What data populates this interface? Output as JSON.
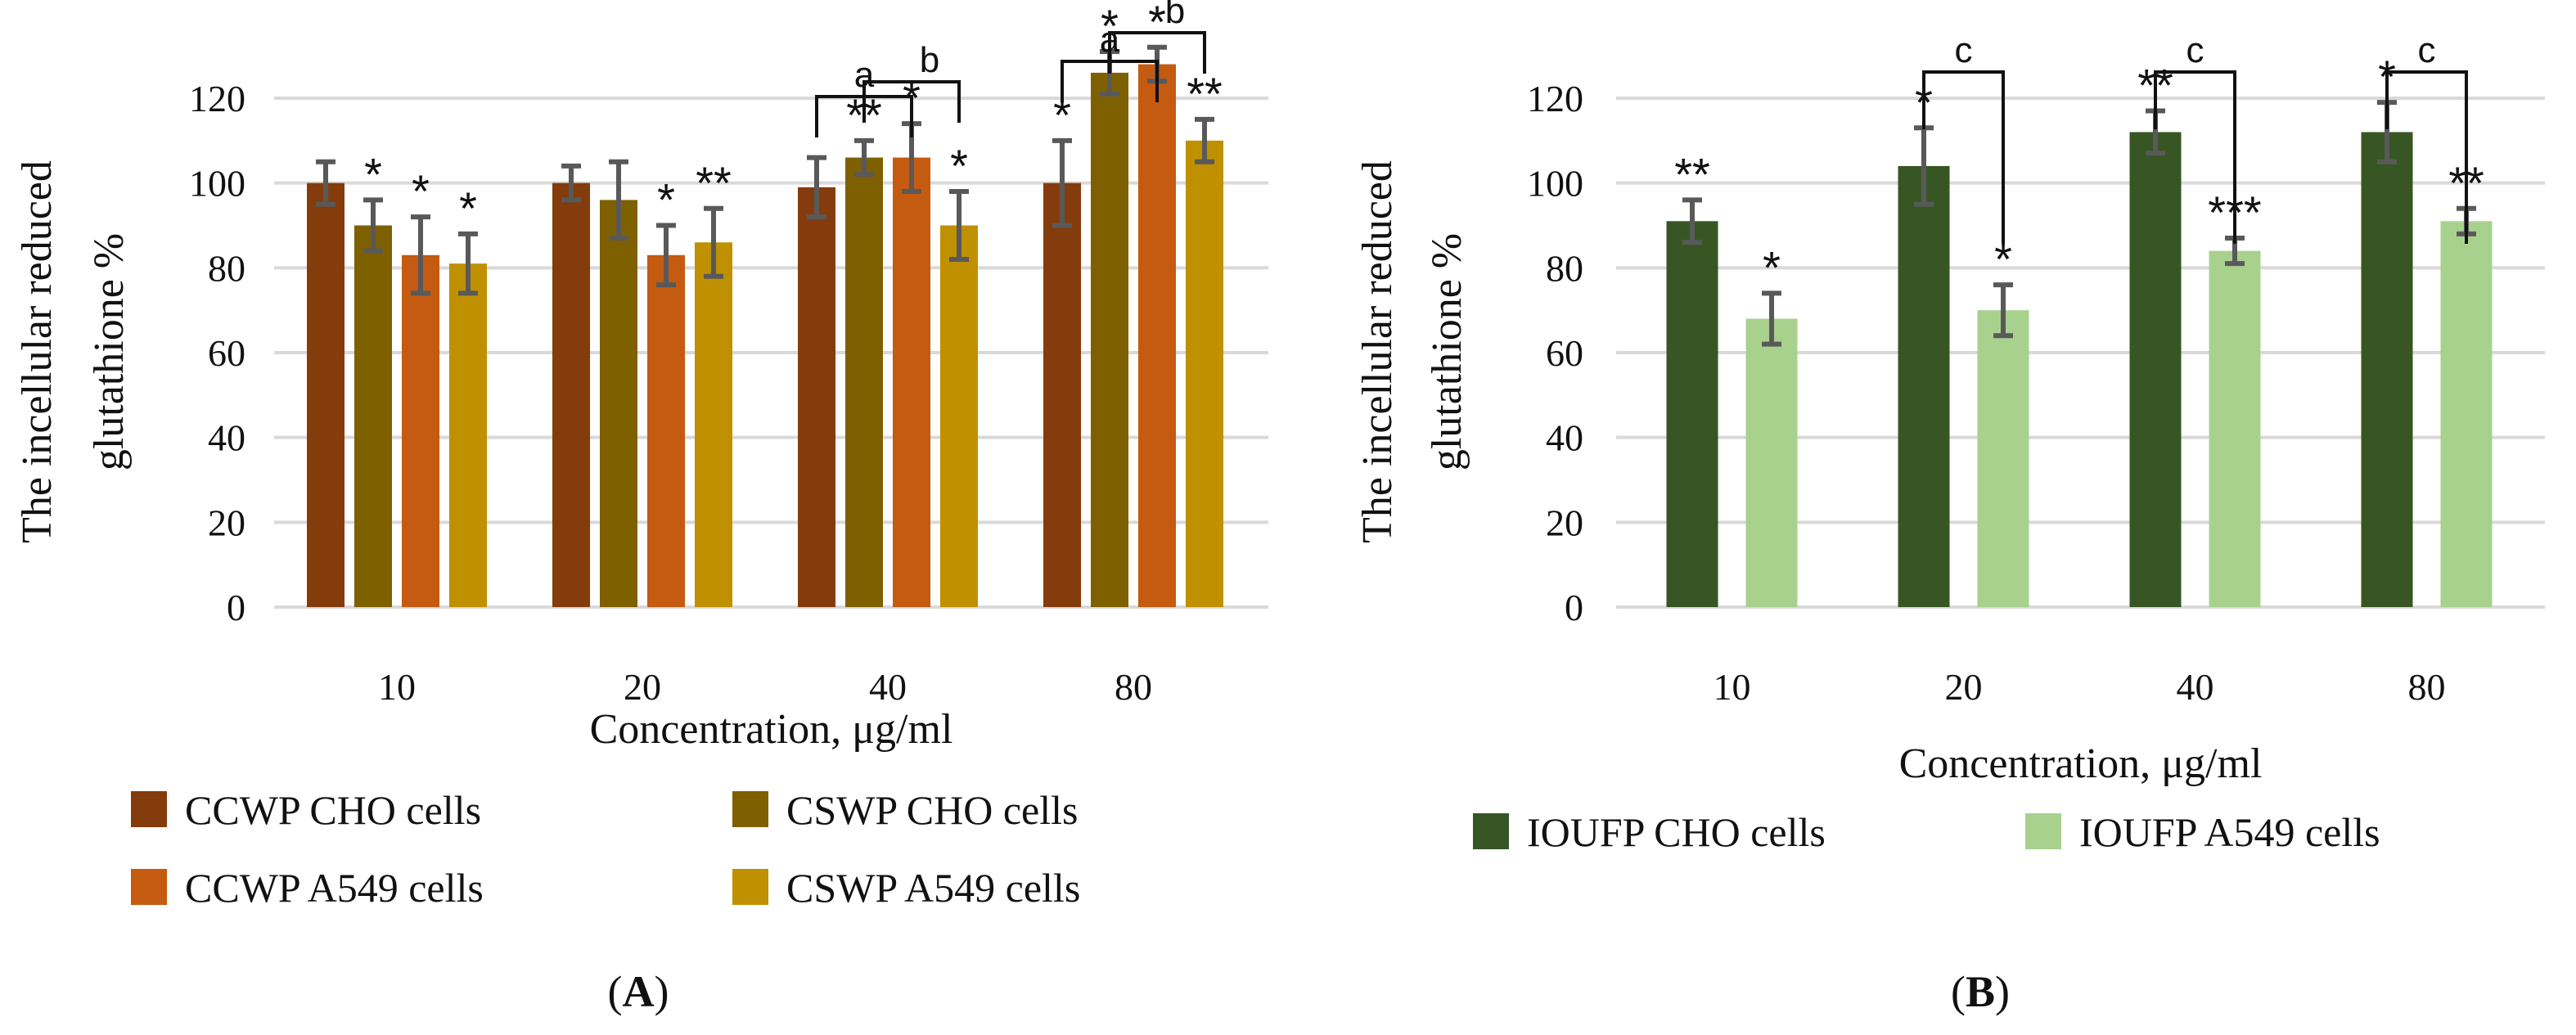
{
  "chart_data": [
    {
      "type": "bar",
      "panel": "A",
      "ylabel_lines": [
        "The incellular reduced",
        "glutathione %"
      ],
      "xlabel": "Concentration, μg/ml",
      "ylim": [
        0,
        120
      ],
      "yticks": [
        0,
        20,
        40,
        60,
        80,
        100,
        120
      ],
      "categories": [
        "10",
        "20",
        "40",
        "80"
      ],
      "series": [
        {
          "name": "CCWP  CHO cells",
          "color": "#843C0C",
          "values": [
            100,
            100,
            99,
            100
          ],
          "errors": [
            5,
            4,
            7,
            10
          ],
          "stars": [
            "",
            "",
            "",
            "*"
          ]
        },
        {
          "name": "CSWP CHO cells",
          "color": "#7F6000",
          "values": [
            90,
            96,
            106,
            126
          ],
          "errors": [
            6,
            9,
            4,
            5
          ],
          "stars": [
            "*",
            "",
            "**",
            "*"
          ]
        },
        {
          "name": "CCWP A549 cells",
          "color": "#C55A11",
          "values": [
            83,
            83,
            106,
            128
          ],
          "errors": [
            9,
            7,
            8,
            4
          ],
          "stars": [
            "*",
            "*",
            "*",
            "*"
          ]
        },
        {
          "name": "CSWP A549 cells",
          "color": "#BF9000",
          "values": [
            81,
            86,
            90,
            110
          ],
          "errors": [
            7,
            8,
            8,
            5
          ],
          "stars": [
            "*",
            "**",
            "*",
            "**"
          ]
        }
      ],
      "brackets": [
        {
          "label": "a",
          "category": "40",
          "from_series": 0,
          "to_series": 2
        },
        {
          "label": "b",
          "category": "40",
          "from_series": 1,
          "to_series": 3
        },
        {
          "label": "a",
          "category": "80",
          "from_series": 0,
          "to_series": 2
        },
        {
          "label": "b",
          "category": "80",
          "from_series": 1,
          "to_series": 3
        }
      ],
      "legend": {
        "placement": "bottom",
        "columns": 2
      },
      "panel_label": "A"
    },
    {
      "type": "bar",
      "panel": "B",
      "ylabel_lines": [
        "The incellular reduced",
        "glutathione %"
      ],
      "xlabel": "Concentration, μg/ml",
      "ylim": [
        0,
        120
      ],
      "yticks": [
        0,
        20,
        40,
        60,
        80,
        100,
        120
      ],
      "categories": [
        "10",
        "20",
        "40",
        "80"
      ],
      "series": [
        {
          "name": "IOUFP CHO cells",
          "color": "#375623",
          "values": [
            91,
            104,
            112,
            112
          ],
          "errors": [
            5,
            9,
            5,
            7
          ],
          "stars": [
            "**",
            "*",
            "**",
            "*"
          ]
        },
        {
          "name": "IOUFP A549 cells",
          "color": "#A9D18E",
          "values": [
            68,
            70,
            84,
            91
          ],
          "errors": [
            6,
            6,
            3,
            3
          ],
          "stars": [
            "*",
            "*",
            "***",
            "**"
          ]
        }
      ],
      "brackets": [
        {
          "label": "c",
          "category": "20",
          "from_series": 0,
          "to_series": 1
        },
        {
          "label": "c",
          "category": "40",
          "from_series": 0,
          "to_series": 1
        },
        {
          "label": "c",
          "category": "80",
          "from_series": 0,
          "to_series": 1
        }
      ],
      "legend": {
        "placement": "bottom",
        "columns": 2
      },
      "panel_label": "B"
    }
  ]
}
